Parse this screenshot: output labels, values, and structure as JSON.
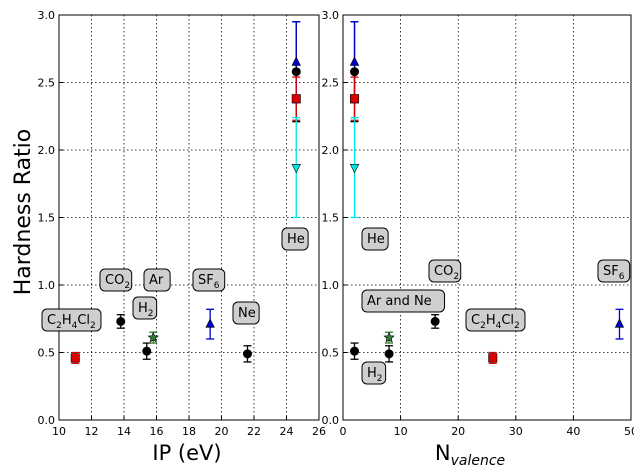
{
  "chart_data": [
    {
      "type": "scatter",
      "xlabel": "IP (eV)",
      "ylabel": "Hardness Ratio",
      "xlim": [
        10,
        26
      ],
      "ylim": [
        0.0,
        3.0
      ],
      "xticks": [
        "10",
        "12",
        "14",
        "16",
        "18",
        "20",
        "22",
        "24",
        "26"
      ],
      "yticks": [
        "0.0",
        "0.5",
        "1.0",
        "1.5",
        "2.0",
        "2.5",
        "3.0"
      ],
      "grid": true,
      "points": [
        {
          "x": 11.0,
          "y": 0.46,
          "err": 0.04,
          "marker": "square",
          "color": "#dd0000"
        },
        {
          "x": 13.8,
          "y": 0.73,
          "err": 0.05,
          "marker": "circle",
          "color": "#000000"
        },
        {
          "x": 15.4,
          "y": 0.51,
          "err": 0.06,
          "marker": "circle",
          "color": "#000000"
        },
        {
          "x": 15.8,
          "y": 0.61,
          "err": 0.04,
          "marker": "star",
          "color": "#2e7d32"
        },
        {
          "x": 19.3,
          "y": 0.71,
          "err": 0.11,
          "marker": "triangle-up",
          "color": "#0000cc"
        },
        {
          "x": 21.6,
          "y": 0.49,
          "err": 0.06,
          "marker": "circle",
          "color": "#000000"
        },
        {
          "x": 24.6,
          "y": 2.58,
          "err": 0.37,
          "marker": "circle",
          "color": "#000000"
        },
        {
          "x": 24.6,
          "y": 2.65,
          "err": 0.3,
          "marker": "triangle-up",
          "color": "#0000cc"
        },
        {
          "x": 24.6,
          "y": 2.38,
          "err": 0.16,
          "marker": "square",
          "color": "#dd0000"
        },
        {
          "x": 24.6,
          "y": 1.87,
          "err": 0.37,
          "marker": "triangle-down",
          "color": "#00e5e5"
        }
      ],
      "annotations": [
        {
          "main": "C",
          "sub": "2",
          "main2": "H",
          "sub2": "4",
          "main3": "Cl",
          "sub3": "2",
          "id": "c2h4cl2"
        },
        {
          "main": "CO",
          "sub": "2",
          "id": "co2"
        },
        {
          "main": "Ar",
          "id": "ar"
        },
        {
          "main": "H",
          "sub": "2",
          "id": "h2"
        },
        {
          "main": "SF",
          "sub": "6",
          "id": "sf6"
        },
        {
          "main": "Ne",
          "id": "ne"
        },
        {
          "main": "He",
          "id": "he"
        }
      ]
    },
    {
      "type": "scatter",
      "xlabel_main": "N",
      "xlabel_sub": "valence",
      "ylim": [
        0.0,
        3.0
      ],
      "xlim": [
        0,
        50
      ],
      "xticks": [
        "0",
        "10",
        "20",
        "30",
        "40",
        "50"
      ],
      "yticks": [
        "0.0",
        "0.5",
        "1.0",
        "1.5",
        "2.0",
        "2.5",
        "3.0"
      ],
      "grid": true,
      "points": [
        {
          "x": 2,
          "y": 2.58,
          "err": 0.37,
          "marker": "circle",
          "color": "#000000"
        },
        {
          "x": 2,
          "y": 2.65,
          "err": 0.3,
          "marker": "triangle-up",
          "color": "#0000cc"
        },
        {
          "x": 2,
          "y": 2.38,
          "err": 0.16,
          "marker": "square",
          "color": "#dd0000"
        },
        {
          "x": 2,
          "y": 1.87,
          "err": 0.37,
          "marker": "triangle-down",
          "color": "#00e5e5"
        },
        {
          "x": 2,
          "y": 0.51,
          "err": 0.06,
          "marker": "circle",
          "color": "#000000"
        },
        {
          "x": 8,
          "y": 0.49,
          "err": 0.06,
          "marker": "circle",
          "color": "#000000"
        },
        {
          "x": 8,
          "y": 0.61,
          "err": 0.04,
          "marker": "star",
          "color": "#2e7d32"
        },
        {
          "x": 16,
          "y": 0.73,
          "err": 0.05,
          "marker": "circle",
          "color": "#000000"
        },
        {
          "x": 26,
          "y": 0.46,
          "err": 0.04,
          "marker": "square",
          "color": "#dd0000"
        },
        {
          "x": 48,
          "y": 0.71,
          "err": 0.11,
          "marker": "triangle-up",
          "color": "#0000cc"
        }
      ],
      "annotations": [
        {
          "main": "He",
          "id": "he"
        },
        {
          "main": "CO",
          "sub": "2",
          "id": "co2"
        },
        {
          "main": "SF",
          "sub": "6",
          "id": "sf6"
        },
        {
          "main": "Ar and Ne",
          "id": "arne"
        },
        {
          "main": "C",
          "sub": "2",
          "main2": "H",
          "sub2": "4",
          "main3": "Cl",
          "sub3": "2",
          "id": "c2h4cl2"
        },
        {
          "main": "H",
          "sub": "2",
          "id": "h2"
        }
      ]
    }
  ]
}
